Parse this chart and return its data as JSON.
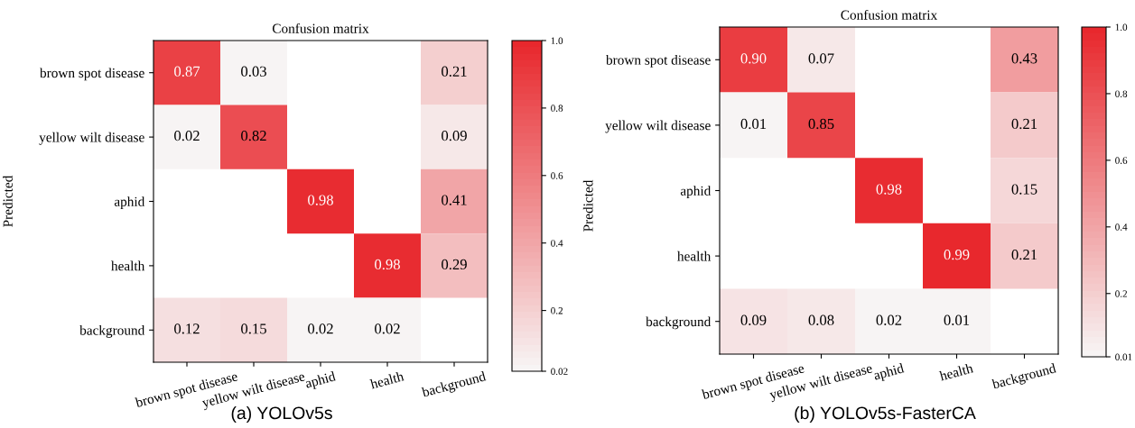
{
  "chart_data": [
    {
      "type": "heatmap",
      "title": "Confusion matrix",
      "ylabel": "Predicted",
      "clabel": "Predicted",
      "categories": [
        "brown spot disease",
        "yellow wilt disease",
        "aphid",
        "health",
        "background"
      ],
      "y_categories": [
        "brown spot disease",
        "yellow wilt disease",
        "aphid",
        "health",
        "background"
      ],
      "cells": [
        [
          0.87,
          0.03,
          null,
          null,
          0.21
        ],
        [
          0.02,
          0.82,
          null,
          null,
          0.09
        ],
        [
          null,
          null,
          0.98,
          null,
          0.41
        ],
        [
          null,
          null,
          null,
          0.98,
          0.29
        ],
        [
          0.12,
          0.15,
          0.02,
          0.02,
          null
        ]
      ],
      "cell_labels": [
        [
          "0.87",
          "0.03",
          null,
          null,
          "0.21"
        ],
        [
          "0.02",
          "0.82",
          null,
          null,
          "0.09"
        ],
        [
          null,
          null,
          "0.98",
          null,
          "0.41"
        ],
        [
          null,
          null,
          null,
          "0.98",
          "0.29"
        ],
        [
          "0.12",
          "0.15",
          "0.02",
          "0.02",
          null
        ]
      ],
      "colors": [
        "#f7f4f4",
        "#e8282d"
      ],
      "clim": [
        0.02,
        1.0
      ],
      "cticks": [
        {
          "value": 0.02,
          "label": "0.02"
        },
        0.2,
        0.4,
        0.6,
        0.8,
        {
          "value": 1.0,
          "label": "1.0"
        }
      ],
      "data_labels": true,
      "annotations": [
        "(a) YOLOv5s"
      ]
    },
    {
      "type": "heatmap",
      "title": "Confusion matrix",
      "categories": [
        "brown spot disease",
        "yellow wilt disease",
        "aphid",
        "health",
        "background"
      ],
      "y_categories": [
        "brown spot disease",
        "yellow wilt disease",
        "aphid",
        "health",
        "background"
      ],
      "cells": [
        [
          0.9,
          0.07,
          null,
          null,
          0.43
        ],
        [
          0.01,
          0.85,
          null,
          null,
          0.21
        ],
        [
          null,
          null,
          0.98,
          null,
          0.15
        ],
        [
          null,
          null,
          null,
          0.99,
          0.21
        ],
        [
          0.09,
          0.08,
          0.02,
          0.01,
          null
        ]
      ],
      "cell_labels": [
        [
          "0.90",
          "0.07",
          null,
          null,
          "0.43"
        ],
        [
          "0.01",
          "0.85",
          null,
          null,
          "0.21"
        ],
        [
          null,
          null,
          "0.98",
          null,
          "0.15"
        ],
        [
          null,
          null,
          null,
          "0.99",
          "0.21"
        ],
        [
          "0.09",
          "0.08",
          "0.02",
          "0.01",
          null
        ]
      ],
      "colors": [
        "#f7f4f4",
        "#e8282d"
      ],
      "clim": [
        0.01,
        1.0
      ],
      "cticks": [
        {
          "value": 0.01,
          "label": "0.01"
        },
        0.2,
        0.4,
        0.6,
        0.8,
        {
          "value": 1.0,
          "label": "1.0"
        }
      ],
      "data_labels": true,
      "annotations": [
        "(b) YOLOv5s-FasterCA"
      ]
    }
  ]
}
